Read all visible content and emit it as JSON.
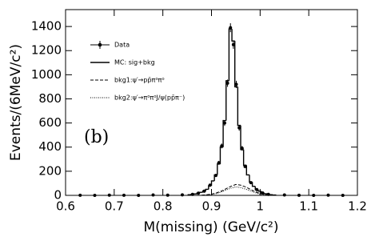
{
  "chart_data": {
    "type": "histogram",
    "annotation": "(b)",
    "xlabel": "M(missing) (GeV/c²)",
    "ylabel": "Events/(6MeV/c²)",
    "xlim": [
      0.6,
      1.2
    ],
    "ylim": [
      0,
      1540
    ],
    "xticks": [
      0.6,
      0.7,
      0.8,
      0.9,
      1,
      1.1,
      1.2
    ],
    "yticks": [
      0,
      200,
      400,
      600,
      800,
      1000,
      1200,
      1400
    ],
    "bins": [
      0.852,
      0.858,
      0.864,
      0.87,
      0.876,
      0.882,
      0.888,
      0.894,
      0.9,
      0.906,
      0.912,
      0.918,
      0.924,
      0.93,
      0.936,
      0.942,
      0.948,
      0.954,
      0.96,
      0.966,
      0.972,
      0.978,
      0.984,
      0.99,
      0.996,
      1.002,
      1.008,
      1.014,
      1.02,
      1.026,
      1.032
    ],
    "series": [
      {
        "name": "MC: sig+bkg",
        "color": "#000000",
        "values": [
          5,
          8,
          12,
          18,
          25,
          35,
          50,
          80,
          120,
          170,
          260,
          400,
          620,
          950,
          1380,
          1280,
          900,
          580,
          380,
          250,
          170,
          110,
          75,
          50,
          35,
          22,
          14,
          9,
          5,
          3
        ]
      }
    ],
    "data": {
      "name": "Data",
      "color": "#000000",
      "x": [
        0.63,
        0.66,
        0.69,
        0.72,
        0.75,
        0.78,
        0.81,
        0.84,
        0.861,
        0.873,
        0.885,
        0.897,
        0.909,
        0.915,
        0.921,
        0.927,
        0.933,
        0.939,
        0.945,
        0.951,
        0.957,
        0.963,
        0.969,
        0.981,
        0.993,
        1.005,
        1.017,
        1.05,
        1.08,
        1.11,
        1.14,
        1.17
      ],
      "values": [
        1,
        0,
        2,
        1,
        0,
        3,
        2,
        4,
        8,
        18,
        35,
        85,
        165,
        270,
        410,
        600,
        930,
        1390,
        1250,
        920,
        560,
        390,
        240,
        105,
        48,
        20,
        8,
        3,
        1,
        0,
        2,
        0
      ],
      "errors": [
        1,
        0,
        1,
        1,
        0,
        2,
        1,
        2,
        3,
        4,
        6,
        9,
        13,
        16,
        20,
        24,
        30,
        37,
        35,
        30,
        24,
        20,
        15,
        10,
        7,
        4,
        3,
        2,
        1,
        0,
        1,
        0
      ]
    },
    "background_x": [
      0.88,
      0.89,
      0.9,
      0.91,
      0.92,
      0.93,
      0.94,
      0.95,
      0.96,
      0.97,
      0.98,
      0.99,
      1.0,
      1.01,
      1.02
    ],
    "backgrounds": [
      {
        "name": "bkg1:ψ′→pp̄π⁰π⁰",
        "color": "#000000",
        "dash": "4 2",
        "values": [
          2,
          5,
          10,
          20,
          35,
          55,
          75,
          90,
          85,
          70,
          50,
          30,
          15,
          6,
          2
        ]
      },
      {
        "name": "bkg2:ψ′→π⁰π⁰J/ψ(pp̄π⁻)",
        "color": "#000000",
        "dash": "1 1.5",
        "values": [
          1,
          3,
          8,
          15,
          28,
          45,
          60,
          70,
          65,
          52,
          38,
          22,
          10,
          4,
          1
        ]
      }
    ]
  }
}
